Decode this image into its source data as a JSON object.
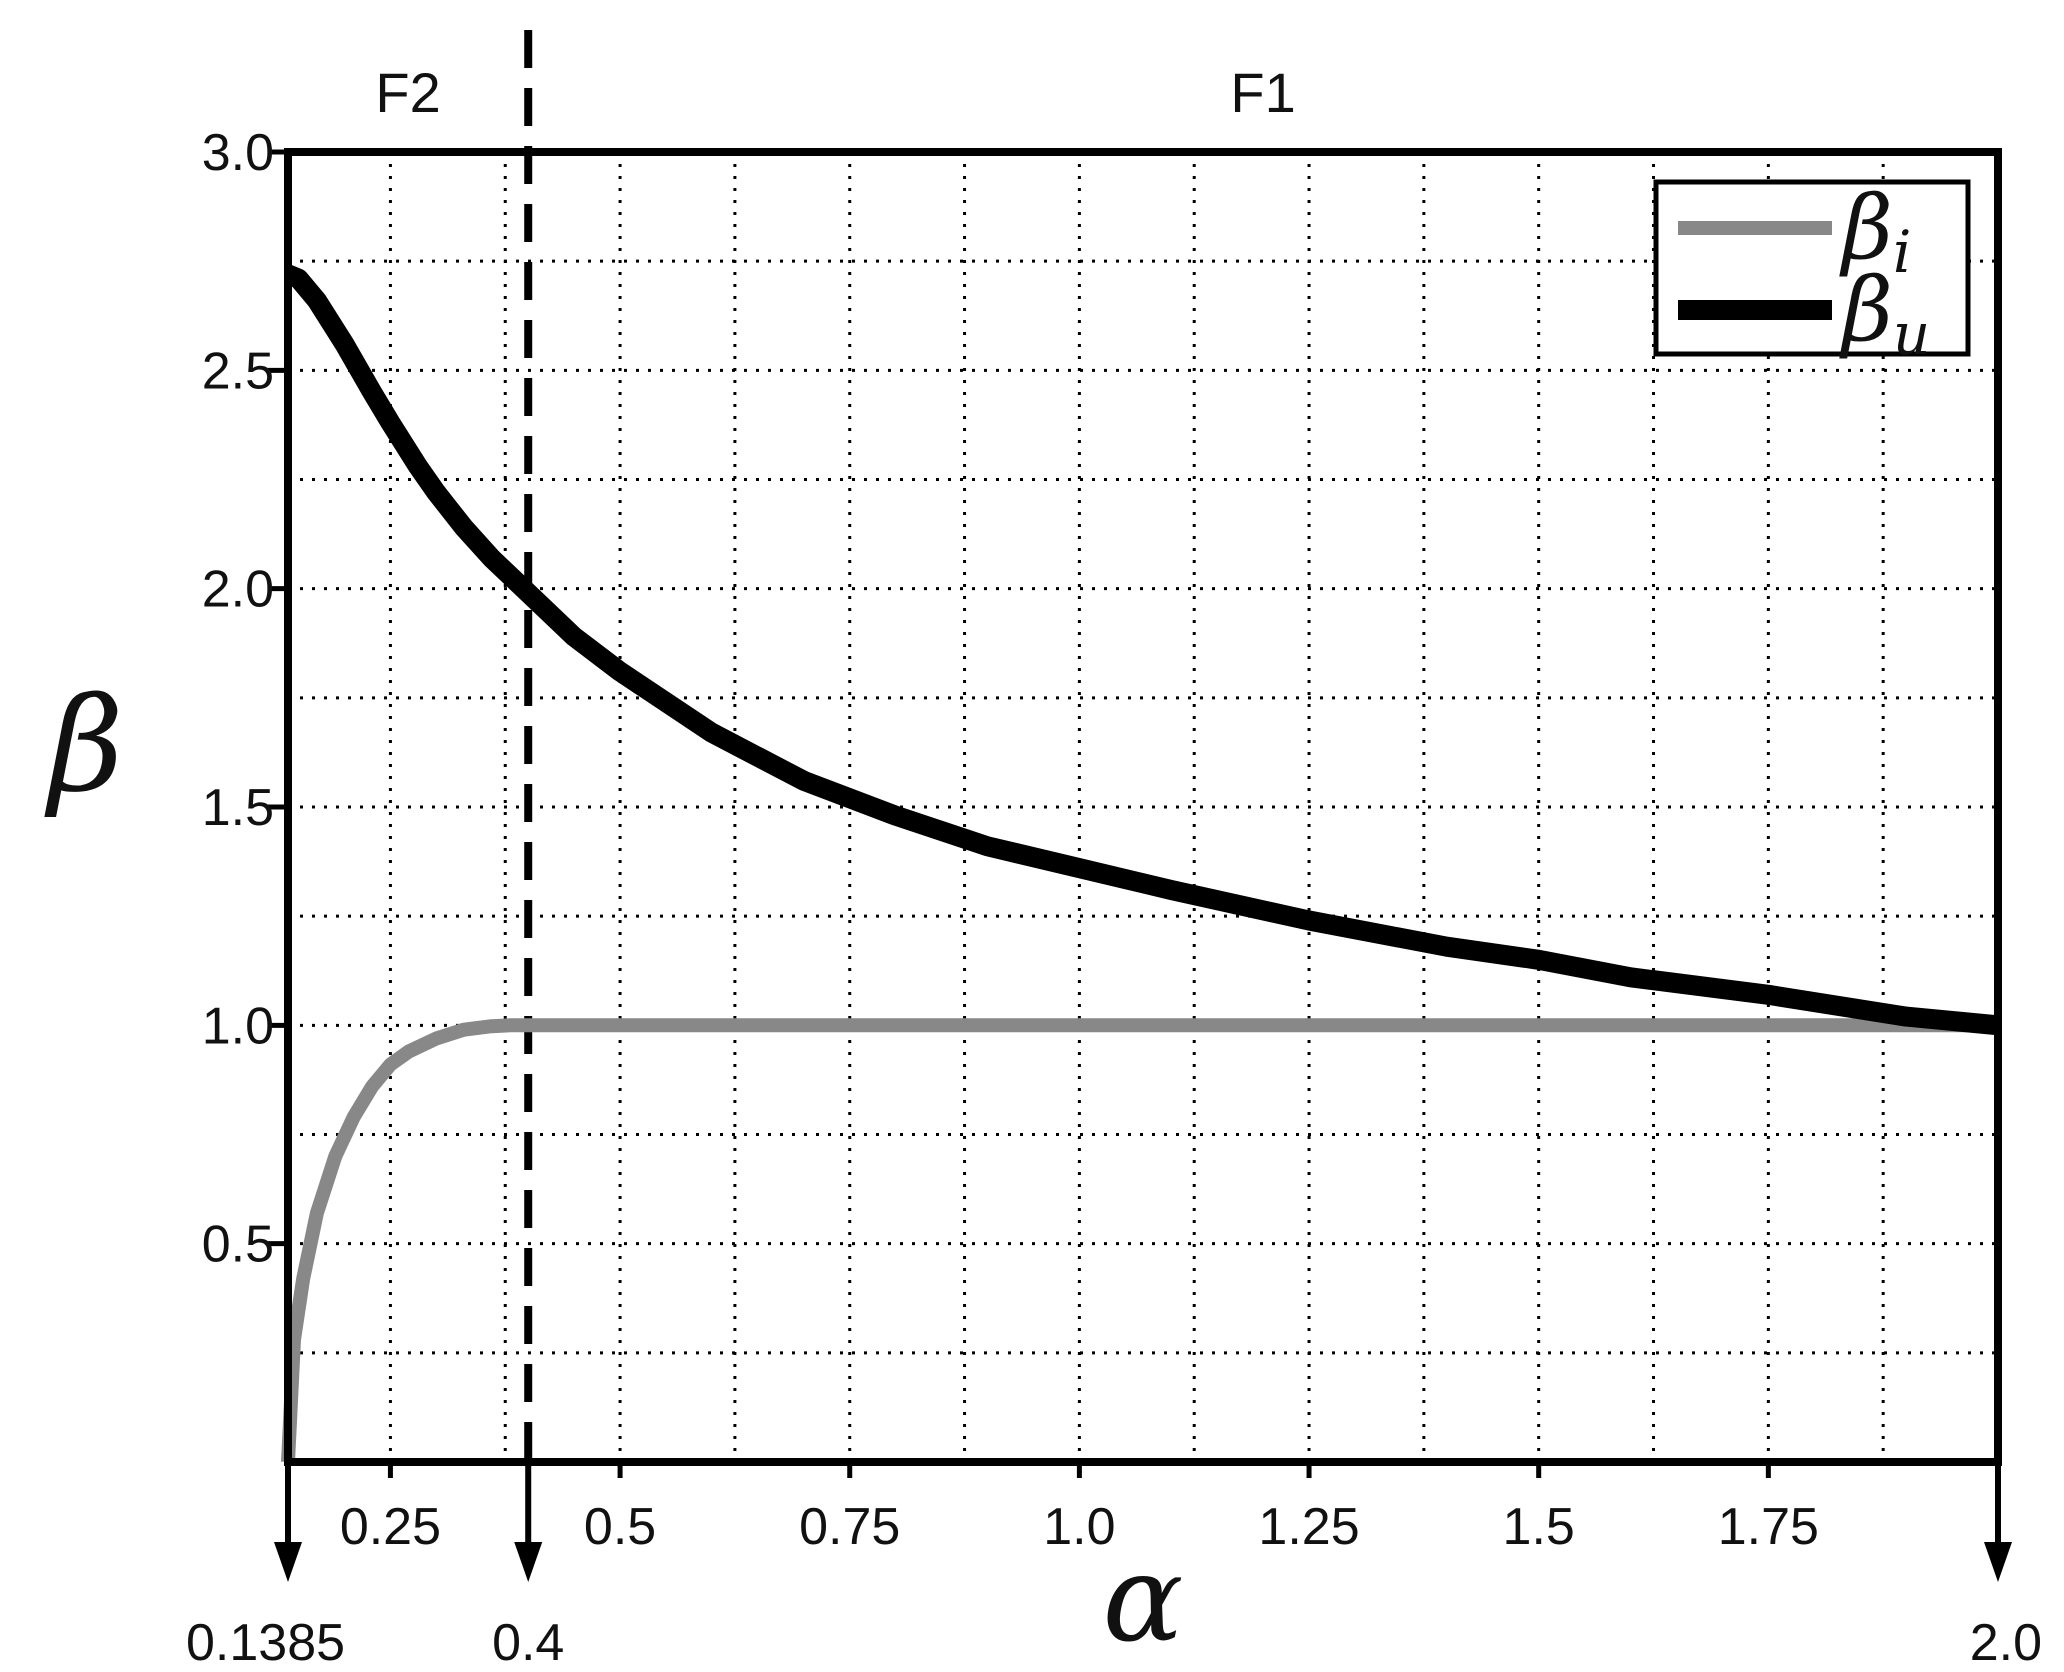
{
  "chart_data": {
    "type": "line",
    "title": "",
    "xlabel": "α",
    "ylabel": "β",
    "xlim": [
      0.1385,
      2.0
    ],
    "ylim": [
      0.0,
      3.0
    ],
    "grid": true,
    "legend_position": "top-right",
    "x_ticks": [
      0.25,
      0.5,
      0.75,
      1.0,
      1.25,
      1.5,
      1.75
    ],
    "x_tick_labels": [
      "0.25",
      "0.5",
      "0.75",
      "1.0",
      "1.25",
      "1.5",
      "1.75"
    ],
    "x_minor_grid": [
      0.375,
      0.625,
      0.875,
      1.125,
      1.375,
      1.625,
      1.875
    ],
    "y_ticks": [
      0.5,
      1.0,
      1.5,
      2.0,
      2.5,
      3.0
    ],
    "y_tick_labels": [
      "0.5",
      "1.0",
      "1.5",
      "2.0",
      "2.5",
      "3.0"
    ],
    "y_minor_grid": [
      0.25,
      0.75,
      1.25,
      1.75,
      2.25,
      2.75
    ],
    "marker_ticks": [
      {
        "x": 0.1385,
        "label": "0.1385"
      },
      {
        "x": 0.4,
        "label": "0.4"
      },
      {
        "x": 2.0,
        "label": "2.0"
      }
    ],
    "regions": [
      {
        "label": "F2",
        "x_range": [
          0.1385,
          0.4
        ]
      },
      {
        "label": "F1",
        "x_range": [
          0.4,
          2.0
        ]
      }
    ],
    "vertical_dashed_line_x": 0.4,
    "series": [
      {
        "name": "β",
        "name_subscript": "i",
        "color": "#888888",
        "x": [
          0.1385,
          0.145,
          0.155,
          0.17,
          0.19,
          0.21,
          0.23,
          0.25,
          0.27,
          0.3,
          0.33,
          0.36,
          0.38,
          0.4,
          0.5,
          0.75,
          1.0,
          1.25,
          1.5,
          1.75,
          2.0
        ],
        "y": [
          0.0,
          0.28,
          0.42,
          0.57,
          0.7,
          0.79,
          0.86,
          0.91,
          0.94,
          0.97,
          0.99,
          0.998,
          1.0,
          1.0,
          1.0,
          1.0,
          1.0,
          1.0,
          1.0,
          1.0,
          1.0
        ]
      },
      {
        "name": "β",
        "name_subscript": "u",
        "color": "#000000",
        "x": [
          0.1385,
          0.15,
          0.17,
          0.2,
          0.23,
          0.25,
          0.28,
          0.3,
          0.33,
          0.36,
          0.4,
          0.45,
          0.5,
          0.6,
          0.7,
          0.8,
          0.9,
          1.0,
          1.1,
          1.25,
          1.4,
          1.5,
          1.6,
          1.75,
          1.9,
          2.0
        ],
        "y": [
          2.72,
          2.71,
          2.66,
          2.56,
          2.45,
          2.38,
          2.28,
          2.22,
          2.14,
          2.07,
          1.99,
          1.89,
          1.81,
          1.67,
          1.56,
          1.48,
          1.41,
          1.36,
          1.31,
          1.24,
          1.18,
          1.15,
          1.11,
          1.07,
          1.02,
          1.0
        ]
      }
    ]
  }
}
